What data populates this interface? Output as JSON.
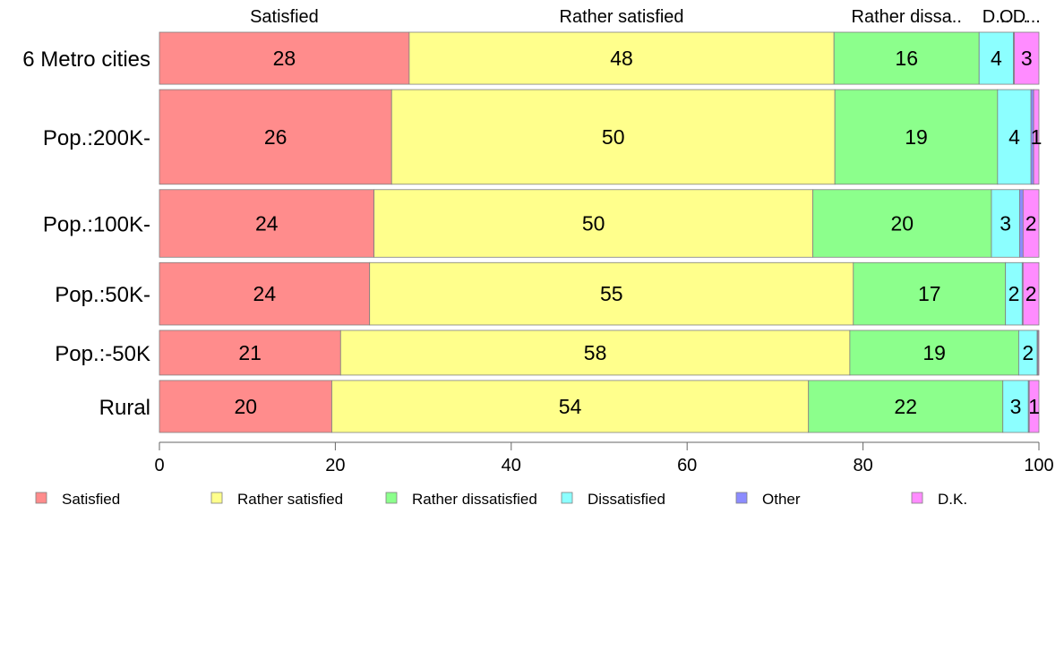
{
  "chart_data": {
    "type": "bar",
    "orientation": "horizontal",
    "stacked": true,
    "title": "",
    "xlabel": "",
    "ylabel": "",
    "xlim": [
      0,
      100
    ],
    "x_ticks": [
      0,
      20,
      40,
      60,
      80,
      100
    ],
    "grid": false,
    "legend_position": "bottom",
    "categories": [
      "6 Metro cities",
      "Pop.:200K-",
      "Pop.:100K-",
      "Pop.:50K-",
      "Pop.:-50K",
      "Rural"
    ],
    "category_weights": [
      1.0,
      1.82,
      1.3,
      1.2,
      0.86,
      1.0
    ],
    "series": [
      {
        "name": "Satisfied",
        "color": "#ff8c8c",
        "values": [
          28.4,
          26.4,
          24.4,
          23.9,
          20.6,
          19.6
        ],
        "labels": [
          "28",
          "26",
          "24",
          "24",
          "21",
          "20"
        ]
      },
      {
        "name": "Rather satisfied",
        "color": "#ffff8c",
        "values": [
          48.3,
          50.4,
          49.9,
          55.0,
          57.9,
          54.2
        ],
        "labels": [
          "48",
          "50",
          "50",
          "55",
          "58",
          "54"
        ]
      },
      {
        "name": "Rather dissatisfied",
        "color": "#8cff8c",
        "values": [
          16.5,
          18.5,
          20.3,
          17.3,
          19.2,
          22.1
        ],
        "labels": [
          "16",
          "19",
          "20",
          "17",
          "19",
          "22"
        ]
      },
      {
        "name": "Dissatisfied",
        "color": "#8cffff",
        "values": [
          3.9,
          3.8,
          3.2,
          1.9,
          2.1,
          2.9
        ],
        "labels": [
          "4",
          "4",
          "3",
          "2",
          "2",
          "3"
        ]
      },
      {
        "name": "Other",
        "color": "#8c8cff",
        "values": [
          0.1,
          0.3,
          0.4,
          0.1,
          0.1,
          0.1
        ],
        "labels": [
          "",
          "",
          "",
          "",
          "",
          ""
        ]
      },
      {
        "name": "D.K.",
        "color": "#ff8cff",
        "values": [
          2.8,
          0.6,
          1.8,
          1.8,
          0.1,
          1.1
        ],
        "labels": [
          "3",
          "1",
          "2",
          "2",
          "",
          "1"
        ]
      }
    ],
    "top_labels": [
      "Satisfied",
      "Rather satisfied",
      "Rather dissa..",
      "D...",
      "O...",
      "D..."
    ]
  }
}
